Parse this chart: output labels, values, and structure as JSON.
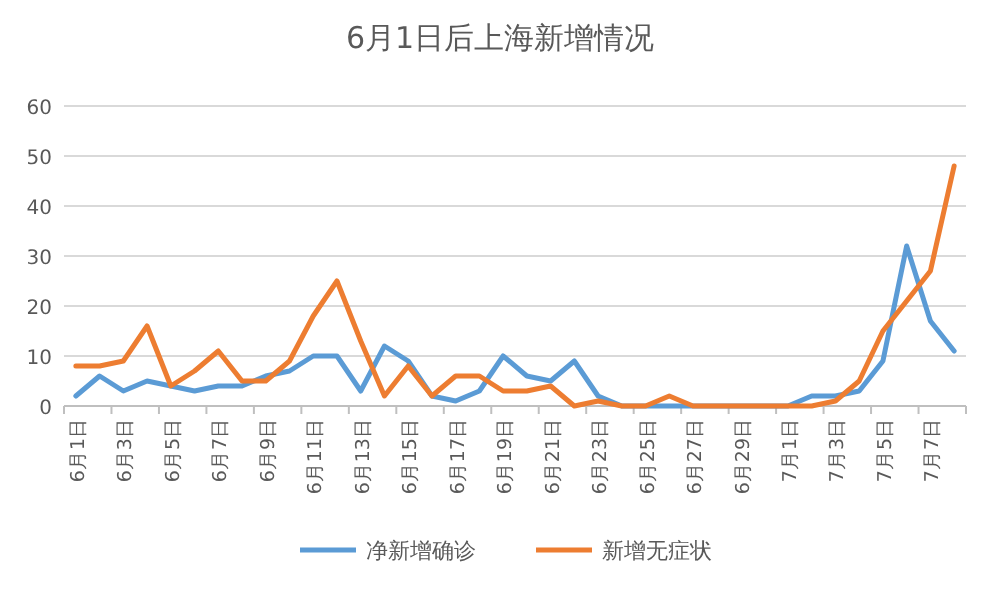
{
  "chart_data": {
    "type": "line",
    "title": "6月1日后上海新增情况",
    "categories": [
      "6月1日",
      null,
      "6月3日",
      null,
      "6月5日",
      null,
      "6月7日",
      null,
      "6月9日",
      null,
      "6月11日",
      null,
      "6月13日",
      null,
      "6月15日",
      null,
      "6月17日",
      null,
      "6月19日",
      null,
      "6月21日",
      null,
      "6月23日",
      null,
      "6月25日",
      null,
      "6月27日",
      null,
      "6月29日",
      null,
      "7月1日",
      null,
      "7月3日",
      null,
      "7月5日",
      null,
      "7月7日",
      null
    ],
    "series": [
      {
        "name": "净新增确诊",
        "color": "#5b9bd5",
        "values": [
          2,
          6,
          3,
          5,
          4,
          3,
          4,
          4,
          6,
          7,
          10,
          10,
          3,
          12,
          9,
          2,
          1,
          3,
          10,
          6,
          5,
          9,
          2,
          0,
          0,
          0,
          0,
          0,
          0,
          0,
          0,
          2,
          2,
          3,
          9,
          32,
          17,
          11
        ]
      },
      {
        "name": "新增无症状",
        "color": "#ed7d31",
        "values": [
          8,
          8,
          9,
          16,
          4,
          7,
          11,
          5,
          5,
          9,
          18,
          25,
          13,
          2,
          8,
          2,
          6,
          6,
          3,
          3,
          4,
          0,
          1,
          0,
          0,
          2,
          0,
          0,
          0,
          0,
          0,
          0,
          1,
          5,
          15,
          21,
          27,
          48
        ]
      }
    ],
    "ylim": [
      0,
      60
    ],
    "yticks": [
      0,
      10,
      20,
      30,
      40,
      50,
      60
    ],
    "grid": "y",
    "legend": "bottom",
    "marker": "none",
    "line_style": "solid"
  }
}
